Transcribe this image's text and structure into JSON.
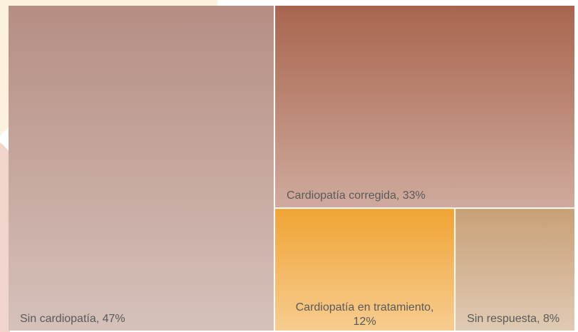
{
  "chart_data": {
    "type": "treemap",
    "values": [
      47,
      33,
      12,
      8
    ],
    "value_labels": [
      "Sin cardiopatía, 47%",
      "Cardiopatía corregida, 33%",
      "Cardiopatía en tratamiento, 12%",
      "Sin respuesta, 8%"
    ],
    "colors": [
      "#b58e83",
      "#a8654e",
      "#f0a435",
      "#c8a077"
    ]
  }
}
